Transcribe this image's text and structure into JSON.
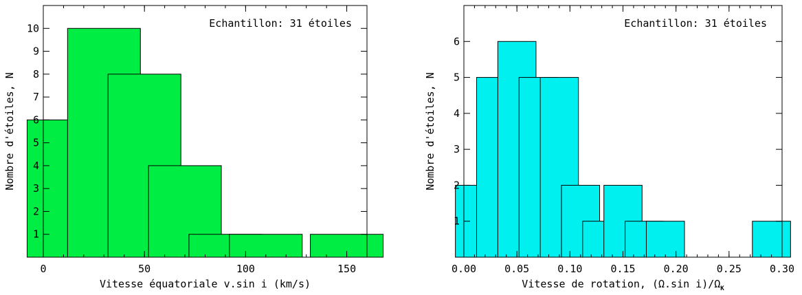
{
  "chart_data": [
    {
      "type": "bar",
      "annotation": "Echantillon: 31 étoiles",
      "xlabel": "Vitesse équatoriale v.sin i (km/s)",
      "ylabel": "Nombre d'étoiles, N",
      "xlim": [
        0,
        160
      ],
      "ylim": [
        0,
        11
      ],
      "xticks": [
        0,
        50,
        100,
        150
      ],
      "yticks": [
        1,
        2,
        3,
        4,
        5,
        6,
        7,
        8,
        9,
        10
      ],
      "bar_width": 12,
      "x": [
        10,
        30,
        50,
        70,
        90,
        110,
        150
      ],
      "values": [
        6,
        10,
        8,
        4,
        1,
        1,
        1
      ],
      "color": "#00ee44"
    },
    {
      "type": "bar",
      "annotation": "Echantillon: 31 étoiles",
      "xlabel": "Vitesse de rotation, (Ω.sin i)/Ω",
      "xlabel_sub": "K",
      "ylabel": "Nombre d'étoiles, N",
      "xlim": [
        0,
        0.3
      ],
      "ylim": [
        0,
        7
      ],
      "xticks": [
        "0.00",
        "0.05",
        "0.10",
        "0.15",
        "0.20",
        "0.25",
        "0.30"
      ],
      "yticks": [
        1,
        2,
        3,
        4,
        5,
        6
      ],
      "bar_width": 0.012,
      "x": [
        0.01,
        0.03,
        0.05,
        0.07,
        0.09,
        0.11,
        0.13,
        0.15,
        0.17,
        0.19,
        0.29
      ],
      "values": [
        2,
        5,
        6,
        5,
        5,
        2,
        1,
        2,
        1,
        1,
        1
      ],
      "color": "#00f0f0"
    }
  ]
}
